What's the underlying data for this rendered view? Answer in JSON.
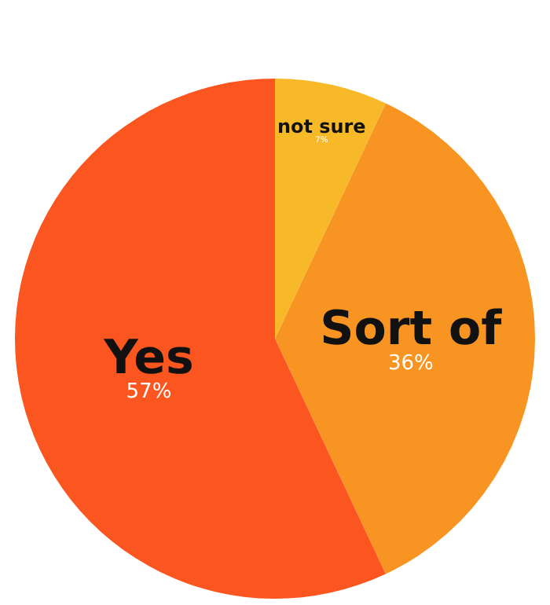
{
  "chart_data": {
    "type": "pie",
    "categories": [
      "not sure",
      "Sort of",
      "Yes"
    ],
    "values": [
      7,
      36,
      57
    ],
    "colors": [
      "#f7b928",
      "#f89422",
      "#fb561f"
    ],
    "value_labels": [
      "7%",
      "36%",
      "57%"
    ],
    "legend": false
  }
}
